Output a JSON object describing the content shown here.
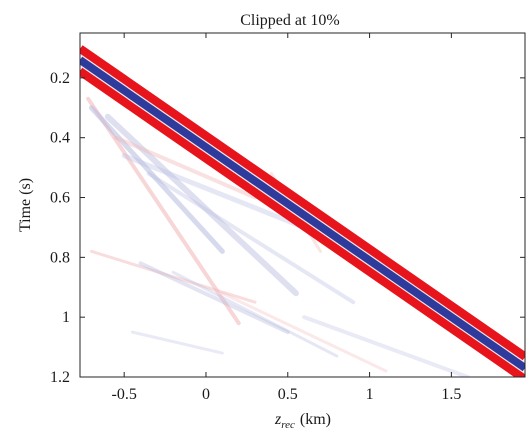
{
  "chart_data": {
    "type": "heatmap",
    "title": "Clipped at 10%",
    "xlabel_symbol": "z",
    "xlabel_subscript": "rec",
    "xlabel_unit": "(km)",
    "ylabel": "Time (s)",
    "xlim": [
      -0.77,
      1.95
    ],
    "ylim": [
      0.05,
      1.2
    ],
    "y_reversed": true,
    "xticks": [
      -0.5,
      0,
      0.5,
      1,
      1.5
    ],
    "xtick_labels": [
      "-0.5",
      "0",
      "0.5",
      "1",
      "1.5"
    ],
    "yticks": [
      0.2,
      0.4,
      0.6,
      0.8,
      1,
      1.2
    ],
    "ytick_labels": [
      "0.2",
      "0.4",
      "0.6",
      "0.8",
      "1",
      "1.2"
    ],
    "colormap": "red-white-blue",
    "clip_percent": 10,
    "colors": {
      "positive": "#e8141c",
      "negative": "#2e3a9c",
      "faint_positive": "#f2b5b8",
      "faint_negative": "#b8bce0",
      "axis": "#262626"
    },
    "main_event": {
      "x": [
        -0.77,
        1.95
      ],
      "time": [
        0.14,
        1.17
      ]
    }
  }
}
